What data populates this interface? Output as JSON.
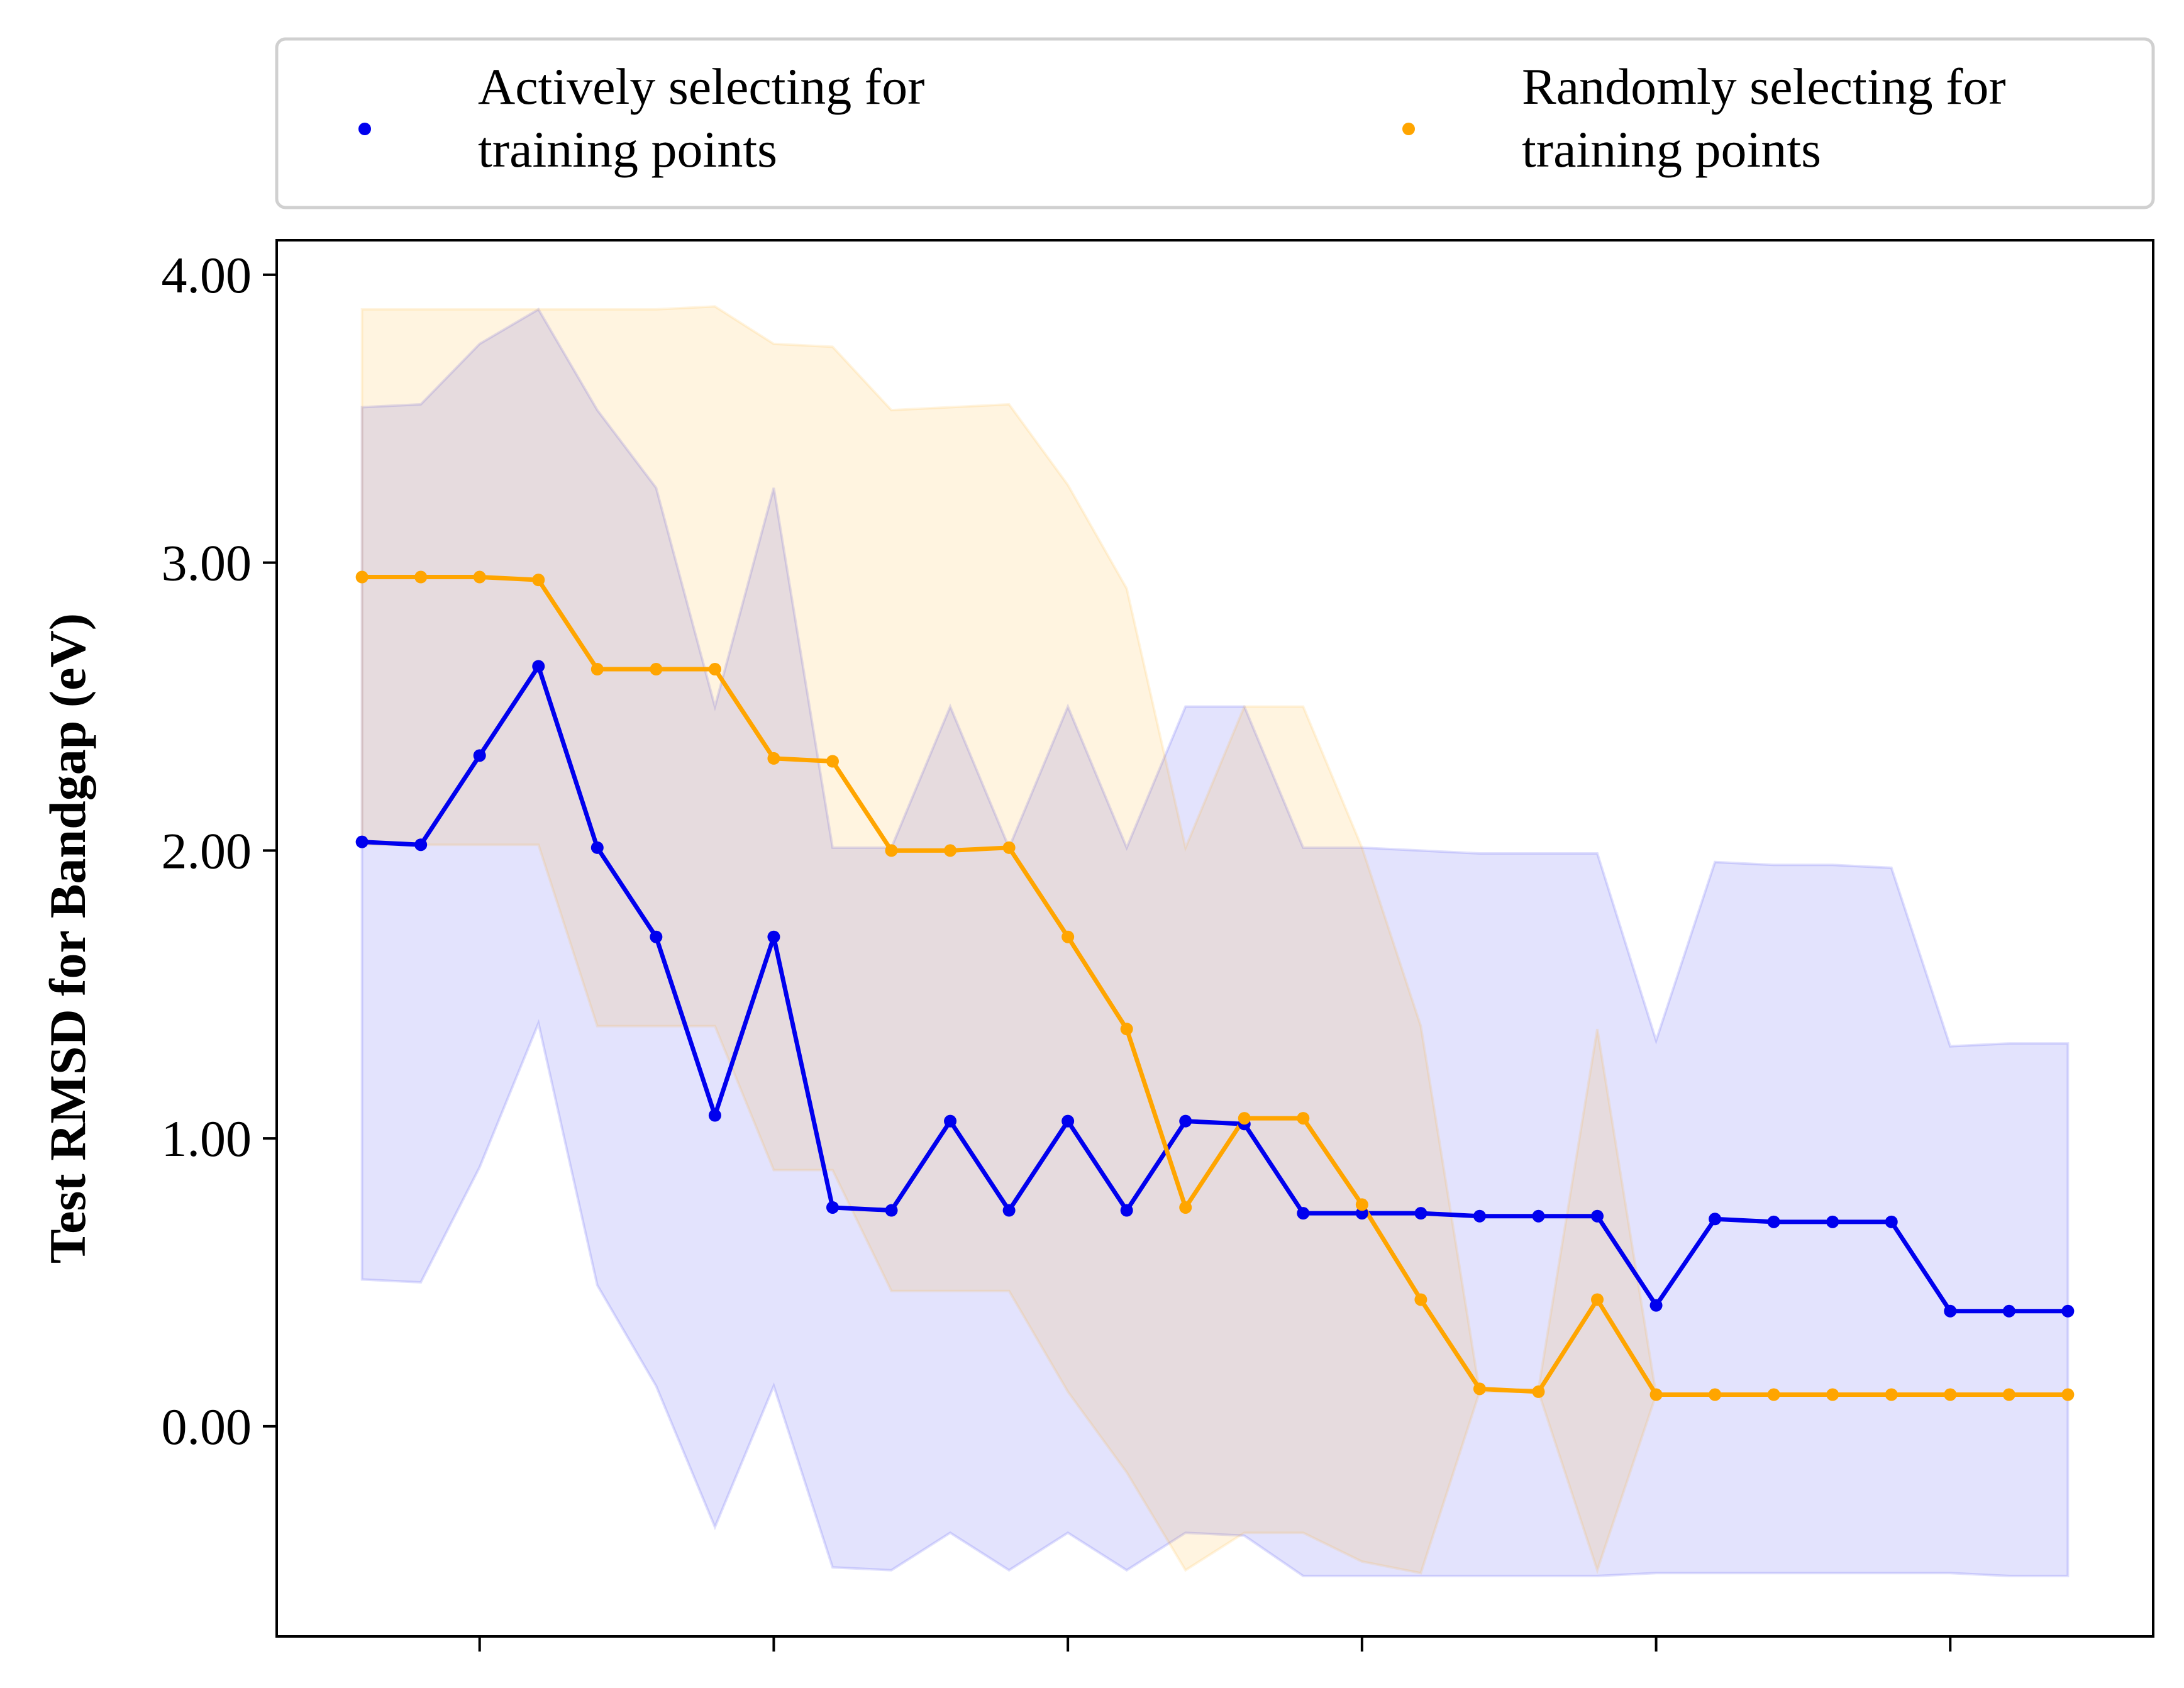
{
  "chart_data": {
    "type": "line",
    "title": "",
    "xlabel": "",
    "ylabel": "Test RMSD for Bandgap (eV)",
    "ylim": [
      -0.73,
      4.12
    ],
    "yticks": [
      0,
      1,
      2,
      3,
      4
    ],
    "ytick_labels": [
      "0.00",
      "1.00",
      "2.00",
      "3.00",
      "4.00"
    ],
    "x": [
      0,
      1,
      2,
      3,
      4,
      5,
      6,
      7,
      8,
      9,
      10,
      11,
      12,
      13,
      14,
      15,
      16,
      17,
      18,
      19,
      20,
      21,
      22,
      23,
      24,
      25,
      26,
      27,
      28,
      29
    ],
    "xlim": [
      -1.45,
      30.45
    ],
    "xticks": [
      2,
      7,
      12,
      17,
      22,
      27
    ],
    "grid": false,
    "legend": {
      "placement": "top, above plot, two columns"
    },
    "series": [
      {
        "name": "Actively selecting for training points",
        "color": "#0000ee",
        "values": [
          2.03,
          2.02,
          2.33,
          2.64,
          2.01,
          1.7,
          1.08,
          1.7,
          0.76,
          0.75,
          1.06,
          0.75,
          1.06,
          0.75,
          1.06,
          1.05,
          0.74,
          0.74,
          0.74,
          0.73,
          0.73,
          0.73,
          0.42,
          0.72,
          0.71,
          0.71,
          0.71,
          0.4,
          0.4,
          0.4
        ],
        "band_upper": [
          3.54,
          3.55,
          3.76,
          3.88,
          3.53,
          3.26,
          2.5,
          3.26,
          2.01,
          2.01,
          2.5,
          2.01,
          2.5,
          2.01,
          2.5,
          2.5,
          2.01,
          2.01,
          2.0,
          1.99,
          1.99,
          1.99,
          1.34,
          1.96,
          1.95,
          1.95,
          1.94,
          1.32,
          1.33,
          1.33
        ],
        "band_lower": [
          0.51,
          0.5,
          0.9,
          1.4,
          0.49,
          0.14,
          -0.35,
          0.14,
          -0.49,
          -0.5,
          -0.37,
          -0.5,
          -0.37,
          -0.5,
          -0.37,
          -0.38,
          -0.52,
          -0.52,
          -0.52,
          -0.52,
          -0.52,
          -0.52,
          -0.51,
          -0.51,
          -0.51,
          -0.51,
          -0.51,
          -0.51,
          -0.52,
          -0.52
        ]
      },
      {
        "name": "Randomly selecting for training points",
        "color": "#ffa500",
        "values": [
          2.95,
          2.95,
          2.95,
          2.94,
          2.63,
          2.63,
          2.63,
          2.32,
          2.31,
          2.0,
          2.0,
          2.01,
          1.7,
          1.38,
          0.76,
          1.07,
          1.07,
          0.77,
          0.44,
          0.13,
          0.12,
          0.44,
          0.11,
          0.11,
          0.11,
          0.11,
          0.11,
          0.11,
          0.11,
          0.11
        ],
        "band_upper": [
          3.88,
          3.88,
          3.88,
          3.88,
          3.88,
          3.88,
          3.89,
          3.76,
          3.75,
          3.53,
          3.54,
          3.55,
          3.27,
          2.91,
          2.01,
          2.5,
          2.5,
          2.01,
          1.39,
          0.12,
          0.13,
          1.38,
          0.11,
          0.11,
          0.11,
          0.11,
          0.11,
          0.11,
          0.11,
          0.11
        ],
        "band_lower": [
          2.02,
          2.02,
          2.02,
          2.02,
          1.39,
          1.39,
          1.39,
          0.89,
          0.89,
          0.47,
          0.47,
          0.47,
          0.12,
          -0.16,
          -0.5,
          -0.37,
          -0.37,
          -0.47,
          -0.51,
          0.12,
          0.12,
          -0.5,
          0.11,
          0.11,
          0.11,
          0.11,
          0.11,
          0.11,
          0.11,
          0.11
        ]
      }
    ]
  }
}
